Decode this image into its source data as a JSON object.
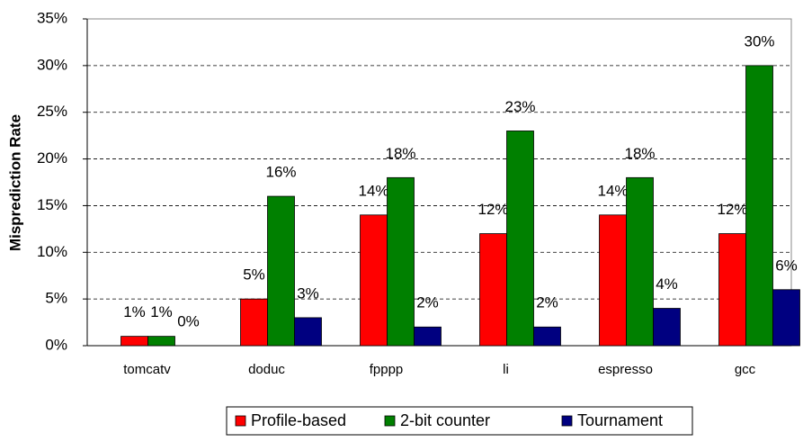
{
  "chart_data": {
    "type": "bar",
    "y_label": "Misprediction Rate",
    "categories": [
      "tomcatv",
      "doduc",
      "fpppp",
      "li",
      "espresso",
      "gcc"
    ],
    "series": [
      {
        "name": "Profile-based",
        "color": "#ff0000",
        "values": [
          1,
          5,
          14,
          12,
          14,
          12
        ],
        "value_labels": [
          "1%",
          "5%",
          "14%",
          "12%",
          "14%",
          "12%"
        ]
      },
      {
        "name": "2-bit counter",
        "color": "#008000",
        "values": [
          1,
          16,
          18,
          23,
          18,
          30
        ],
        "value_labels": [
          "1%",
          "16%",
          "18%",
          "23%",
          "18%",
          "30%"
        ]
      },
      {
        "name": "Tournament",
        "color": "#000080",
        "values": [
          0,
          3,
          2,
          2,
          4,
          6
        ],
        "value_labels": [
          "0%",
          "3%",
          "2%",
          "2%",
          "4%",
          "6%"
        ]
      }
    ],
    "ylim": [
      0,
      35
    ],
    "yticks": [
      {
        "value": 0,
        "label": "0%"
      },
      {
        "value": 5,
        "label": "5%"
      },
      {
        "value": 10,
        "label": "10%"
      },
      {
        "value": 15,
        "label": "15%"
      },
      {
        "value": 20,
        "label": "20%"
      },
      {
        "value": 25,
        "label": "25%"
      },
      {
        "value": 30,
        "label": "30%"
      },
      {
        "value": 35,
        "label": "35%"
      }
    ],
    "grid": true,
    "legend": "bottom"
  }
}
